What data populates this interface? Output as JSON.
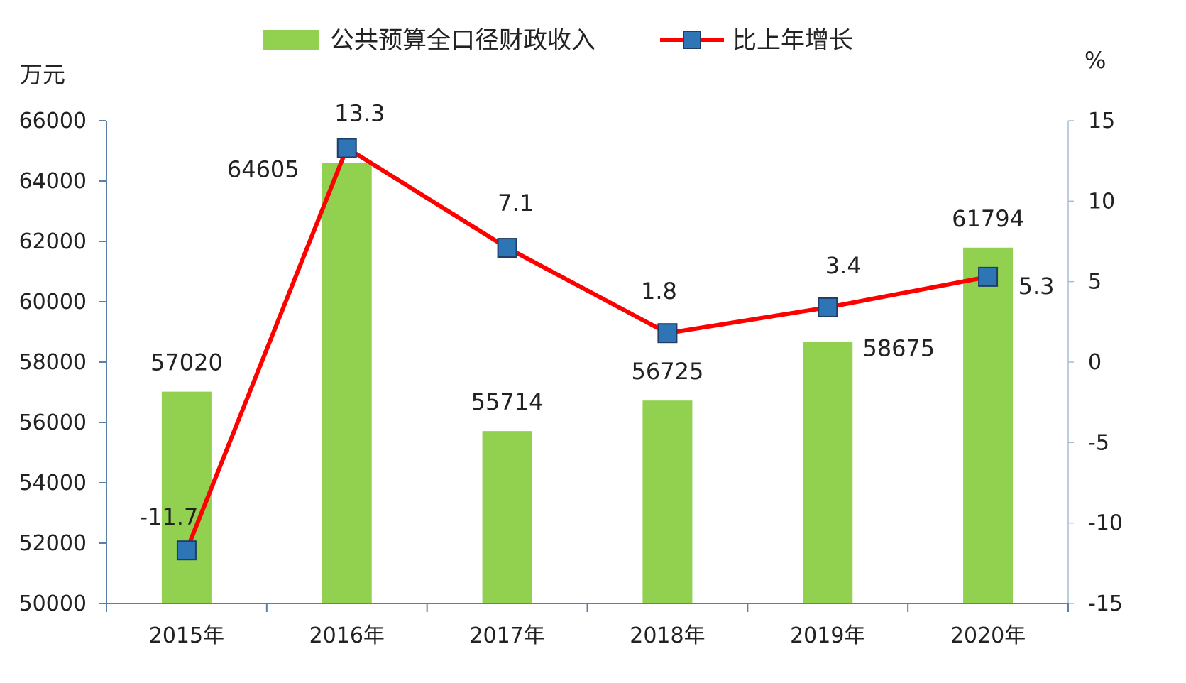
{
  "chart_data": {
    "type": "bar+line",
    "categories": [
      "2015年",
      "2016年",
      "2017年",
      "2018年",
      "2019年",
      "2020年"
    ],
    "series": [
      {
        "name": "公共预算全口径财政收入",
        "type": "bar",
        "axis": "left",
        "color": "#92d050",
        "values": [
          57020,
          64605,
          55714,
          56725,
          58675,
          61794
        ]
      },
      {
        "name": "比上年增长",
        "type": "line",
        "axis": "right",
        "color": "#ff0000",
        "marker_color": "#2e75b6",
        "values": [
          -11.7,
          13.3,
          7.1,
          1.8,
          3.4,
          5.3
        ]
      }
    ],
    "y_left": {
      "unit": "万元",
      "range": [
        50000,
        66000
      ],
      "ticks": [
        50000,
        52000,
        54000,
        56000,
        58000,
        60000,
        62000,
        64000,
        66000
      ]
    },
    "y_right": {
      "unit": "%",
      "range": [
        -15,
        15
      ],
      "ticks": [
        -15,
        -10,
        -5,
        0,
        5,
        10,
        15
      ]
    },
    "legend_position": "top",
    "grid": false
  }
}
